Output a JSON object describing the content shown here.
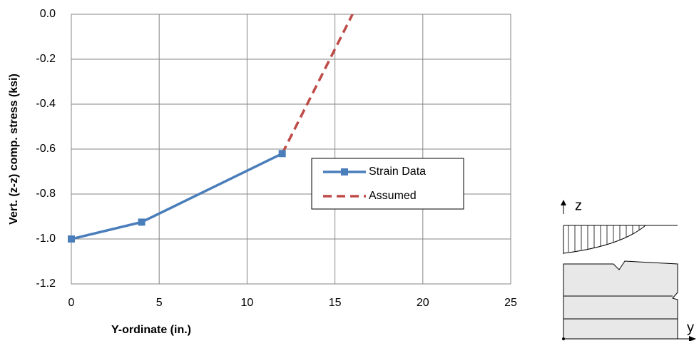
{
  "chart_data": {
    "type": "line",
    "xlabel": "Y-ordinate (in.)",
    "ylabel": "Vert. (z-z) comp. stress (ksi)",
    "xlim": [
      0,
      25
    ],
    "xticks": [
      0,
      5,
      10,
      15,
      20,
      25
    ],
    "ylim": [
      -1.2,
      0
    ],
    "yticks": [
      {
        "value": 0,
        "label": "0.0"
      },
      -0.2,
      -0.4,
      -0.6,
      -0.8,
      {
        "value": -1.0,
        "label": "-1.0"
      },
      -1.2
    ],
    "grid": true,
    "legend": "right",
    "series": [
      {
        "name": "Strain Data",
        "color": "#4a7ebb",
        "dashed": false,
        "marker": "square",
        "x": [
          0,
          4,
          12
        ],
        "values": [
          -1.0,
          -0.925,
          -0.62
        ]
      },
      {
        "name": "Assumed",
        "color": "#be4b48",
        "dashed": true,
        "marker": "none",
        "x": [
          12,
          16
        ],
        "values": [
          -0.62,
          0.0
        ]
      }
    ]
  },
  "diagram": {
    "z_label": "z",
    "y_label": "y"
  }
}
